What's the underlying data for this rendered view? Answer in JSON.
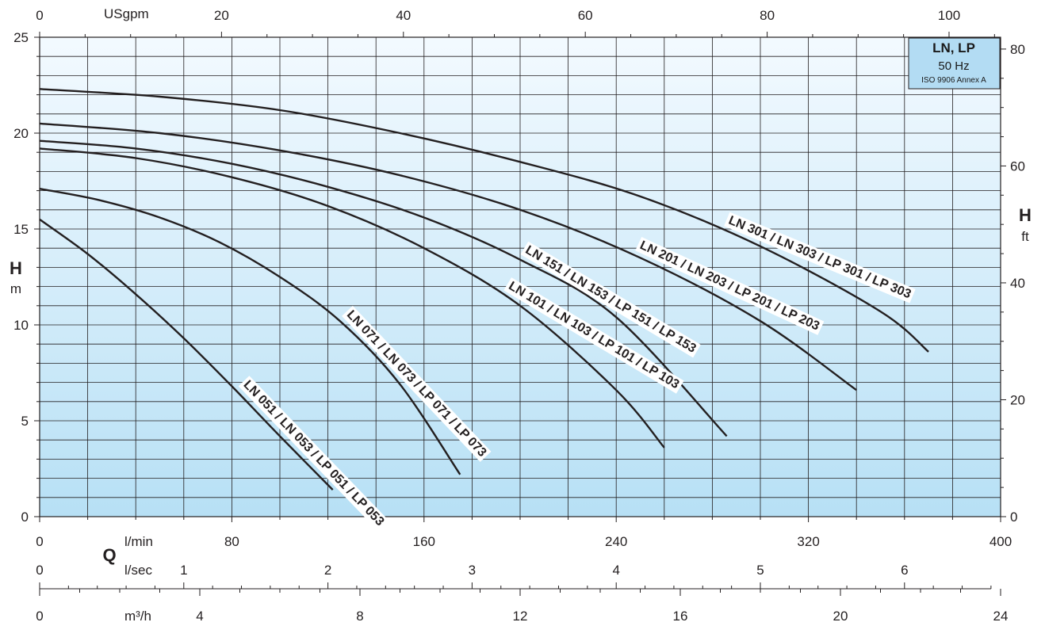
{
  "legend_box": {
    "title": "LN, LP",
    "frequency": "50 Hz",
    "standard": "ISO 9906 Annex A"
  },
  "axes": {
    "h_m": {
      "label": "H",
      "unit": "m"
    },
    "h_ft": {
      "label": "H",
      "unit": "ft"
    },
    "q": {
      "label": "Q"
    },
    "usgpm": {
      "unit": "USgpm"
    },
    "lmin": {
      "unit": "l/min"
    },
    "lsec": {
      "unit": "l/sec"
    },
    "m3h": {
      "unit": "m³/h"
    }
  },
  "chart_data": {
    "type": "line",
    "xlabel": "Q",
    "ylabel": "H",
    "x_unit": "l/min",
    "y_unit": "m",
    "xlim": [
      0,
      400
    ],
    "ylim": [
      0,
      25
    ],
    "grid": true,
    "scales": {
      "usgpm": {
        "ticks": [
          "0",
          "20",
          "40",
          "60",
          "80",
          "100"
        ],
        "values": [
          0,
          20,
          40,
          60,
          80,
          100
        ]
      },
      "lmin": {
        "ticks": [
          "0",
          "80",
          "160",
          "240",
          "320",
          "400"
        ],
        "values": [
          0,
          80,
          160,
          240,
          320,
          400
        ]
      },
      "lsec": {
        "ticks": [
          "0",
          "1",
          "2",
          "3",
          "4",
          "5",
          "6"
        ],
        "values": [
          0,
          1,
          2,
          3,
          4,
          5,
          6
        ]
      },
      "m3h": {
        "ticks": [
          "0",
          "4",
          "8",
          "12",
          "16",
          "20",
          "24"
        ],
        "values": [
          0,
          4,
          8,
          12,
          16,
          20,
          24
        ]
      },
      "h_m": {
        "ticks": [
          "0",
          "5",
          "10",
          "15",
          "20",
          "25"
        ],
        "values": [
          0,
          5,
          10,
          15,
          20,
          25
        ]
      },
      "h_ft": {
        "ticks": [
          "0",
          "20",
          "40",
          "60",
          "80"
        ],
        "values": [
          0,
          20,
          40,
          60,
          80
        ]
      }
    },
    "series": [
      {
        "name": "LN 051 / LN 053 / LP 051 / LP 053",
        "x": [
          0,
          20,
          40,
          60,
          80,
          100,
          122
        ],
        "y": [
          15.5,
          13.7,
          11.6,
          9.3,
          6.8,
          4.2,
          1.4
        ]
      },
      {
        "name": "LN 071 / LN 073 / LP 071 / LP 073",
        "x": [
          0,
          25,
          50,
          75,
          100,
          125,
          150,
          175
        ],
        "y": [
          17.1,
          16.5,
          15.6,
          14.3,
          12.5,
          10.2,
          6.9,
          2.2
        ]
      },
      {
        "name": "LN 101 / LN 103 / LP 101 / LP 103",
        "x": [
          0,
          40,
          80,
          120,
          160,
          200,
          240,
          260
        ],
        "y": [
          19.2,
          18.7,
          17.7,
          16.2,
          14.0,
          11.0,
          6.6,
          3.6
        ]
      },
      {
        "name": "LN 151 / LN 153 / LP 151 / LP 153",
        "x": [
          0,
          40,
          80,
          120,
          160,
          200,
          240,
          286
        ],
        "y": [
          19.6,
          19.2,
          18.4,
          17.2,
          15.6,
          13.4,
          10.4,
          4.2
        ]
      },
      {
        "name": "LN 201 / LN 203 / LP 201 / LP 203",
        "x": [
          0,
          50,
          100,
          150,
          200,
          250,
          300,
          340
        ],
        "y": [
          20.5,
          20.0,
          19.1,
          17.8,
          16.0,
          13.5,
          10.2,
          6.6
        ]
      },
      {
        "name": "LN 301 / LN 303 / LP 301 / LP 303",
        "x": [
          0,
          50,
          100,
          150,
          200,
          250,
          300,
          350,
          370
        ],
        "y": [
          22.3,
          21.9,
          21.2,
          20.0,
          18.5,
          16.7,
          14.1,
          10.7,
          8.6
        ]
      }
    ]
  }
}
